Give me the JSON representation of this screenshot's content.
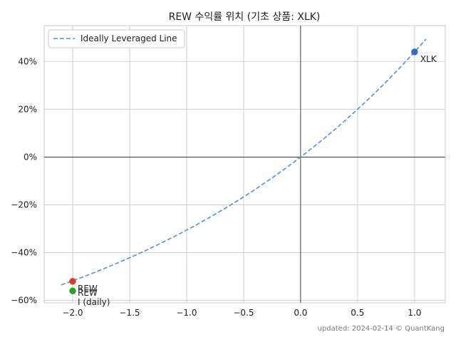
{
  "chart_data": {
    "type": "scatter",
    "title": "REW 수익률 위치 (기초 상품: XLK)",
    "xlabel": "",
    "ylabel": "",
    "xlim": [
      -2.25,
      1.27
    ],
    "ylim": [
      -61,
      55
    ],
    "x_ticks": [
      -2.0,
      -1.5,
      -1.0,
      -0.5,
      0.0,
      0.5,
      1.0
    ],
    "x_tick_labels": [
      "−2.0",
      "−1.5",
      "−1.0",
      "−0.5",
      "0.0",
      "0.5",
      "1.0"
    ],
    "y_ticks": [
      -60,
      -40,
      -20,
      0,
      20,
      40
    ],
    "y_tick_labels": [
      "−60%",
      "−40%",
      "−20%",
      "0%",
      "20%",
      "40%"
    ],
    "grid": true,
    "legend_position": "top-left",
    "line": {
      "name": "Ideally Leveraged Line",
      "style": "dashed",
      "color": "#5b8fd9",
      "x_range": [
        -2.1,
        1.1
      ],
      "base_return": 0.44,
      "points": [
        [
          -2.1,
          -53.9
        ],
        [
          -2.0,
          -52.4
        ],
        [
          -1.5,
          -42.2
        ],
        [
          -1.0,
          -30.6
        ],
        [
          -0.5,
          -16.7
        ],
        [
          0.0,
          0.0
        ],
        [
          0.5,
          20.0
        ],
        [
          1.0,
          44.0
        ],
        [
          1.1,
          49.3
        ]
      ]
    },
    "points": [
      {
        "label": "XLK",
        "x": 1.0,
        "y": 44.0,
        "color": "#2f6fba"
      },
      {
        "label": "REW",
        "x": -2.0,
        "y": -52.0,
        "color": "#d93a30"
      },
      {
        "label": "REW",
        "x": -2.0,
        "y": -56.0,
        "color": "#2ca02c"
      }
    ],
    "point_annotations": [
      {
        "text": "XLK",
        "x": 1.0,
        "y": 44.0
      },
      {
        "text": "REW",
        "x": -2.0,
        "y": -52.0
      },
      {
        "text": "REW",
        "x": -2.0,
        "y": -56.0
      },
      {
        "text": "I (daily)",
        "x": -2.0,
        "y": -56.0
      }
    ]
  },
  "footer": "updated: 2024-02-14 © QuantKang"
}
